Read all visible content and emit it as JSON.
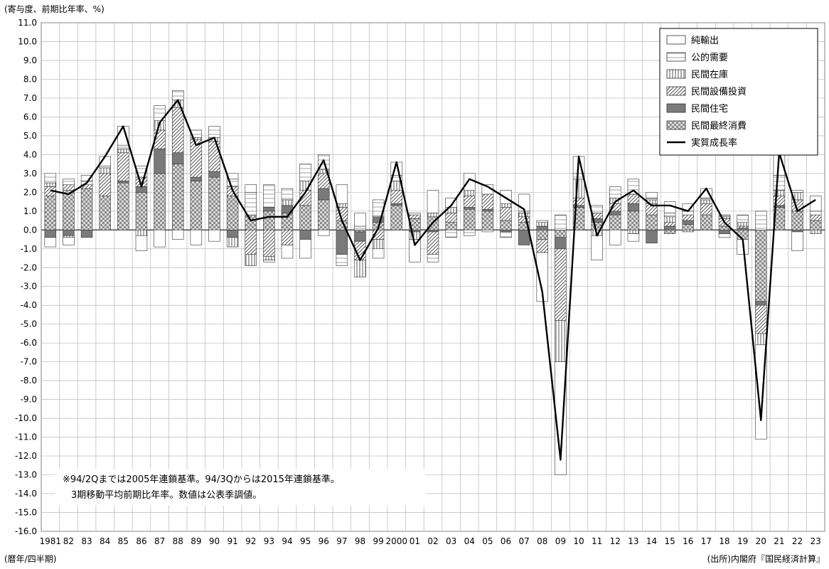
{
  "labels": {
    "y_unit": "(寄与度、前期比年率、%)",
    "x_unit": "(暦年/四半期)",
    "source": "(出所)内閣府『国民経済計算』",
    "note_line1": "※94/2Qまでは2005年連鎖基準。94/3Qからは2015年連鎖基準。",
    "note_line2": "3期移動平均前期比年率。数値は公表季調値。"
  },
  "colors": {
    "net_exports": "#ffffff",
    "public_demand": "#ffffff",
    "inventory": "#ffffff",
    "capex": "#e6e6e6",
    "housing": "#7a7a7a",
    "consumption": "#bdbdbd",
    "line": "#000000",
    "grid": "#b8b8b8"
  },
  "chart_data": {
    "type": "bar",
    "stacked": true,
    "xlabel": "(暦年/四半期)",
    "ylabel": "(寄与度、前期比年率、%)",
    "ylim": [
      -16.0,
      11.0
    ],
    "ytick_step": 1.0,
    "grid": true,
    "legend_position": "top-right",
    "year_labels": [
      "1981",
      "82",
      "83",
      "84",
      "85",
      "86",
      "87",
      "88",
      "89",
      "90",
      "91",
      "92",
      "93",
      "94",
      "95",
      "96",
      "97",
      "98",
      "99",
      "2000",
      "01",
      "02",
      "03",
      "04",
      "05",
      "06",
      "07",
      "08",
      "09",
      "10",
      "11",
      "12",
      "13",
      "14",
      "15",
      "16",
      "17",
      "18",
      "19",
      "20",
      "21",
      "22",
      "23"
    ],
    "x_positions": [
      1981,
      1982,
      1983,
      1984,
      1985,
      1986,
      1987,
      1988,
      1989,
      1990,
      1991,
      1992,
      1993,
      1994,
      1995,
      1996,
      1997,
      1998,
      1999,
      2000,
      2001,
      2002,
      2003,
      2004,
      2005,
      2006,
      2007,
      2008,
      2009,
      2010,
      2011,
      2012,
      2013,
      2014,
      2015,
      2016,
      2017,
      2018,
      2019,
      2020,
      2021,
      2022,
      2023
    ],
    "series": [
      {
        "name": "純輸出",
        "kind": "bar",
        "values": [
          -0.5,
          -0.4,
          0.3,
          0.5,
          1.0,
          -0.8,
          -0.9,
          -0.5,
          -0.8,
          -0.6,
          0.3,
          0.4,
          -0.1,
          -0.7,
          -1.0,
          -0.3,
          1.0,
          0.7,
          -0.5,
          0.7,
          -1.2,
          1.2,
          0.5,
          0.9,
          0.5,
          0.7,
          0.9,
          -2.6,
          -6.0,
          0.9,
          -1.3,
          -0.8,
          -0.4,
          0.3,
          0.6,
          0.4,
          0.5,
          -0.2,
          -0.8,
          -5.0,
          1.2,
          -1.0,
          0.8
        ]
      },
      {
        "name": "公的需要",
        "kind": "bar",
        "values": [
          0.5,
          0.3,
          0.2,
          0.1,
          0.2,
          0.6,
          0.8,
          0.5,
          0.4,
          0.6,
          0.4,
          1.2,
          1.2,
          0.6,
          0.9,
          0.8,
          -0.6,
          0.2,
          0.9,
          0.3,
          0.1,
          -0.4,
          -0.4,
          -0.3,
          -0.1,
          -0.3,
          0.1,
          0.1,
          0.8,
          0.3,
          0.4,
          0.6,
          0.8,
          0.1,
          0.2,
          0.2,
          0.1,
          0.1,
          0.4,
          1.0,
          0.8,
          0.1,
          0.2
        ]
      },
      {
        "name": "民間在庫",
        "kind": "bar",
        "values": [
          0.2,
          -0.1,
          0.0,
          0.3,
          0.2,
          -0.3,
          0.5,
          0.4,
          0.1,
          0.2,
          -0.5,
          -0.6,
          -0.2,
          0.3,
          0.5,
          0.2,
          0.2,
          -0.9,
          -0.5,
          0.5,
          -0.4,
          0.2,
          0.3,
          0.3,
          0.0,
          0.2,
          0.2,
          0.2,
          -2.2,
          1.0,
          -0.3,
          0.3,
          -0.2,
          0.2,
          0.3,
          -0.1,
          0.2,
          0.1,
          0.2,
          -0.6,
          0.3,
          0.4,
          -0.2
        ]
      },
      {
        "name": "民間設備投資",
        "kind": "bar",
        "values": [
          0.5,
          0.3,
          0.2,
          1.2,
          1.5,
          0.5,
          1.0,
          2.4,
          2.0,
          1.6,
          0.5,
          -1.3,
          -1.4,
          -0.8,
          0.8,
          0.8,
          0.7,
          -1.0,
          -0.5,
          0.7,
          0.2,
          -1.2,
          0.5,
          0.6,
          0.8,
          0.7,
          0.3,
          -0.7,
          -3.8,
          0.4,
          0.3,
          0.4,
          0.5,
          0.6,
          0.2,
          0.3,
          0.6,
          0.4,
          0.1,
          -1.5,
          0.5,
          0.6,
          0.3
        ]
      },
      {
        "name": "民間住宅",
        "kind": "bar",
        "values": [
          -0.4,
          -0.3,
          -0.4,
          0.0,
          0.1,
          0.3,
          1.3,
          0.6,
          0.2,
          0.3,
          -0.4,
          0.0,
          0.2,
          0.4,
          -0.5,
          0.6,
          -1.3,
          -0.5,
          0.3,
          0.1,
          -0.1,
          -0.1,
          0.0,
          0.1,
          0.1,
          -0.1,
          -0.8,
          0.2,
          -0.6,
          0.1,
          0.2,
          0.2,
          0.4,
          -0.7,
          0.2,
          0.2,
          0.0,
          -0.2,
          0.1,
          -0.2,
          0.1,
          -0.1,
          0.0
        ]
      },
      {
        "name": "民間最終消費",
        "kind": "bar",
        "values": [
          1.8,
          2.1,
          2.2,
          1.8,
          2.5,
          2.0,
          3.0,
          3.5,
          2.6,
          2.8,
          1.8,
          0.8,
          1.0,
          0.9,
          1.3,
          1.6,
          0.5,
          -0.1,
          0.4,
          1.3,
          0.6,
          0.7,
          0.4,
          1.1,
          1.0,
          0.5,
          0.4,
          -0.5,
          -0.4,
          1.2,
          0.4,
          0.8,
          1.0,
          0.8,
          -0.2,
          0.3,
          0.8,
          0.2,
          -0.5,
          -3.8,
          1.2,
          1.0,
          0.5
        ]
      },
      {
        "name": "実質成長率",
        "kind": "line",
        "values": [
          2.1,
          1.9,
          2.5,
          3.9,
          5.5,
          2.3,
          5.7,
          6.9,
          4.5,
          4.9,
          2.1,
          0.5,
          0.7,
          0.7,
          2.0,
          3.7,
          0.5,
          -1.6,
          0.1,
          3.6,
          -0.8,
          0.4,
          1.3,
          2.7,
          2.3,
          1.7,
          1.1,
          -3.3,
          -12.2,
          3.9,
          -0.3,
          1.5,
          2.1,
          1.3,
          1.3,
          1.0,
          2.2,
          0.4,
          -0.5,
          -10.1,
          4.1,
          1.0,
          1.6
        ]
      }
    ]
  }
}
